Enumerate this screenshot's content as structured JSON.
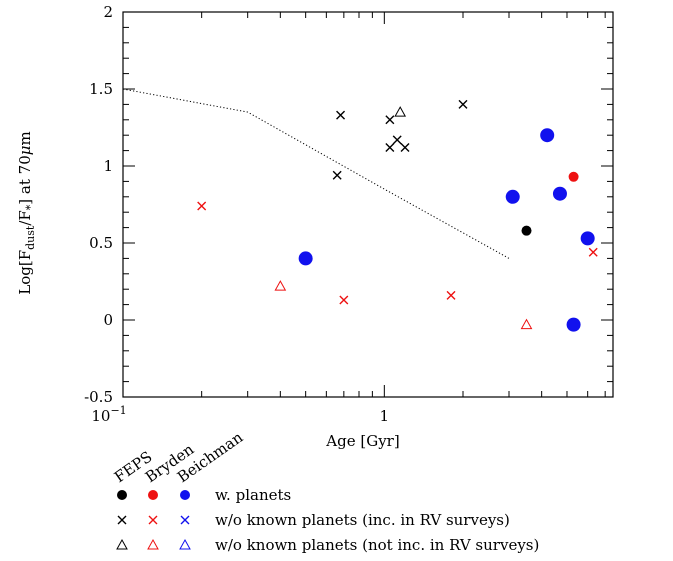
{
  "chart_data": {
    "type": "scatter",
    "xlabel": "Age [Gyr]",
    "ylabel": "Log[F_dust/F_*] at 70μm",
    "xscale": "log",
    "xlim": [
      0.1,
      7.5
    ],
    "ylim": [
      -0.5,
      2
    ],
    "x_tick_labels": [
      "10^-1",
      "1"
    ],
    "y_ticks": [
      -0.5,
      0,
      0.5,
      1,
      1.5,
      2
    ],
    "y_tick_labels": [
      "-0.5",
      "0",
      "0.5",
      "1",
      "1.5",
      "2"
    ],
    "series": [
      {
        "survey": "FEPS",
        "planets": "w. planets",
        "marker": "filled-circle",
        "color": "#000000",
        "size": "small",
        "points": [
          {
            "x": 3.5,
            "y": 0.58
          }
        ]
      },
      {
        "survey": "FEPS",
        "planets": "w/o known planets (inc. in RV surveys)",
        "marker": "cross",
        "color": "#000000",
        "points": [
          {
            "x": 0.68,
            "y": 1.33
          },
          {
            "x": 0.66,
            "y": 0.94
          },
          {
            "x": 1.05,
            "y": 1.3
          },
          {
            "x": 1.05,
            "y": 1.12
          },
          {
            "x": 1.12,
            "y": 1.17
          },
          {
            "x": 1.2,
            "y": 1.12
          },
          {
            "x": 2.0,
            "y": 1.4
          }
        ]
      },
      {
        "survey": "FEPS",
        "planets": "w/o known planets (not inc. in RV surveys)",
        "marker": "triangle",
        "color": "#000000",
        "points": [
          {
            "x": 1.15,
            "y": 1.35
          }
        ]
      },
      {
        "survey": "Bryden",
        "planets": "w. planets",
        "marker": "filled-circle",
        "color": "#ee1111",
        "size": "small",
        "points": [
          {
            "x": 5.3,
            "y": 0.93
          }
        ]
      },
      {
        "survey": "Bryden",
        "planets": "w/o known planets (inc. in RV surveys)",
        "marker": "cross",
        "color": "#ee1111",
        "points": [
          {
            "x": 0.2,
            "y": 0.74
          },
          {
            "x": 0.7,
            "y": 0.13
          },
          {
            "x": 1.8,
            "y": 0.16
          },
          {
            "x": 6.3,
            "y": 0.44
          }
        ]
      },
      {
        "survey": "Bryden",
        "planets": "w/o known planets (not inc. in RV surveys)",
        "marker": "triangle",
        "color": "#ee1111",
        "points": [
          {
            "x": 0.4,
            "y": 0.22
          },
          {
            "x": 3.5,
            "y": -0.03
          }
        ]
      },
      {
        "survey": "Beichman",
        "planets": "w. planets",
        "marker": "filled-circle",
        "color": "#1111ee",
        "size": "large",
        "points": [
          {
            "x": 0.5,
            "y": 0.4
          },
          {
            "x": 3.1,
            "y": 0.8
          },
          {
            "x": 4.2,
            "y": 1.2
          },
          {
            "x": 4.7,
            "y": 0.82
          },
          {
            "x": 6.0,
            "y": 0.53
          },
          {
            "x": 5.3,
            "y": -0.03
          }
        ]
      }
    ],
    "line": {
      "style": "dotted",
      "color": "#000000",
      "points": [
        {
          "x": 0.1,
          "y": 1.5
        },
        {
          "x": 0.3,
          "y": 1.35
        },
        {
          "x": 1.0,
          "y": 0.85
        },
        {
          "x": 3.0,
          "y": 0.4
        }
      ]
    },
    "legend": {
      "survey_labels": [
        "FEPS",
        "Bryden",
        "Beichman"
      ],
      "rows": [
        {
          "marker": "filled-circle",
          "label": "w. planets"
        },
        {
          "marker": "cross",
          "label": "w/o known planets (inc. in RV surveys)"
        },
        {
          "marker": "triangle",
          "label": "w/o known planets (not inc. in RV surveys)"
        }
      ],
      "colors": [
        "#000000",
        "#ee1111",
        "#1111ee"
      ],
      "placement": "below the plot"
    }
  }
}
